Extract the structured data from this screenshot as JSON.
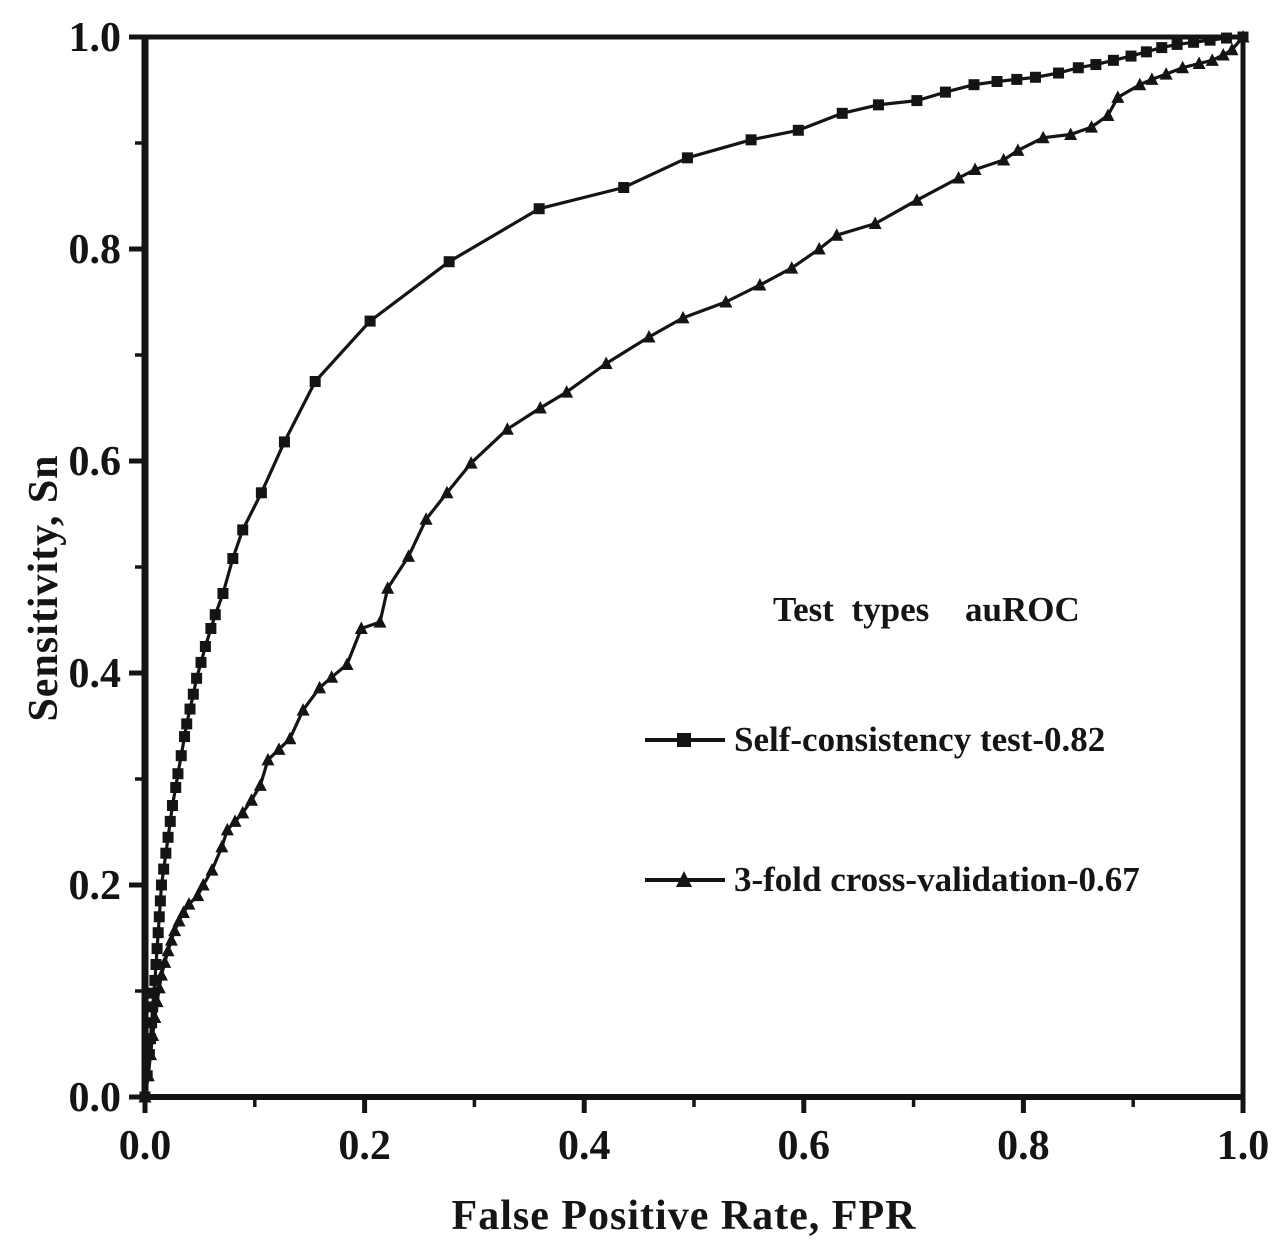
{
  "chart_data": {
    "type": "line",
    "title": "",
    "xlabel": "False Positive Rate, FPR",
    "ylabel": "Sensitivity, Sn",
    "xlim": [
      0.0,
      1.0
    ],
    "ylim": [
      0.0,
      1.0
    ],
    "grid": false,
    "x_ticks": {
      "values": [
        0.0,
        0.2,
        0.4,
        0.6,
        0.8,
        1.0
      ],
      "labels": [
        "0.0",
        "0.2",
        "0.4",
        "0.6",
        "0.8",
        "1.0"
      ],
      "minor_values": [
        0.1,
        0.3,
        0.5,
        0.7,
        0.9
      ]
    },
    "y_ticks": {
      "values": [
        0.0,
        0.2,
        0.4,
        0.6,
        0.8,
        1.0
      ],
      "labels": [
        "0.0",
        "0.2",
        "0.4",
        "0.6",
        "0.8",
        "1.0"
      ],
      "minor_values": [
        0.1,
        0.3,
        0.5,
        0.7,
        0.9
      ]
    },
    "colors": {
      "ink": "#141414",
      "background": "#ffffff"
    },
    "legend": {
      "position": "inside-right-middle",
      "header_col1": "Test  types",
      "header_col2": "auROC",
      "items": [
        {
          "label": "Self-consistency  test-0.82",
          "marker": "square",
          "auROC": 0.82
        },
        {
          "label": "3-fold cross-validation-0.67",
          "marker": "triangle-up",
          "auROC": 0.67
        }
      ]
    },
    "series": [
      {
        "name": "Self-consistency test",
        "auROC": 0.82,
        "marker": "square",
        "color": "#141414",
        "points": [
          [
            0.0,
            0.0
          ],
          [
            0.002,
            0.02
          ],
          [
            0.004,
            0.04
          ],
          [
            0.005,
            0.055
          ],
          [
            0.006,
            0.07
          ],
          [
            0.007,
            0.085
          ],
          [
            0.008,
            0.098
          ],
          [
            0.009,
            0.11
          ],
          [
            0.01,
            0.125
          ],
          [
            0.011,
            0.14
          ],
          [
            0.012,
            0.155
          ],
          [
            0.013,
            0.17
          ],
          [
            0.014,
            0.185
          ],
          [
            0.015,
            0.2
          ],
          [
            0.017,
            0.215
          ],
          [
            0.019,
            0.23
          ],
          [
            0.021,
            0.245
          ],
          [
            0.023,
            0.26
          ],
          [
            0.025,
            0.275
          ],
          [
            0.028,
            0.292
          ],
          [
            0.03,
            0.305
          ],
          [
            0.033,
            0.322
          ],
          [
            0.036,
            0.34
          ],
          [
            0.038,
            0.352
          ],
          [
            0.041,
            0.366
          ],
          [
            0.044,
            0.38
          ],
          [
            0.047,
            0.395
          ],
          [
            0.051,
            0.41
          ],
          [
            0.055,
            0.425
          ],
          [
            0.06,
            0.442
          ],
          [
            0.064,
            0.455
          ],
          [
            0.071,
            0.475
          ],
          [
            0.08,
            0.508
          ],
          [
            0.089,
            0.535
          ],
          [
            0.106,
            0.57
          ],
          [
            0.127,
            0.618
          ],
          [
            0.155,
            0.675
          ],
          [
            0.205,
            0.732
          ],
          [
            0.277,
            0.788
          ],
          [
            0.359,
            0.838
          ],
          [
            0.436,
            0.858
          ],
          [
            0.494,
            0.886
          ],
          [
            0.552,
            0.903
          ],
          [
            0.595,
            0.912
          ],
          [
            0.635,
            0.928
          ],
          [
            0.668,
            0.936
          ],
          [
            0.703,
            0.94
          ],
          [
            0.729,
            0.948
          ],
          [
            0.755,
            0.955
          ],
          [
            0.776,
            0.958
          ],
          [
            0.794,
            0.96
          ],
          [
            0.811,
            0.962
          ],
          [
            0.832,
            0.966
          ],
          [
            0.85,
            0.971
          ],
          [
            0.866,
            0.974
          ],
          [
            0.882,
            0.978
          ],
          [
            0.898,
            0.982
          ],
          [
            0.912,
            0.986
          ],
          [
            0.926,
            0.99
          ],
          [
            0.94,
            0.993
          ],
          [
            0.955,
            0.995
          ],
          [
            0.97,
            0.997
          ],
          [
            0.985,
            0.999
          ],
          [
            1.0,
            1.0
          ]
        ]
      },
      {
        "name": "3-fold cross-validation",
        "auROC": 0.67,
        "marker": "triangle-up",
        "color": "#141414",
        "points": [
          [
            0.0,
            0.0
          ],
          [
            0.003,
            0.02
          ],
          [
            0.005,
            0.04
          ],
          [
            0.007,
            0.058
          ],
          [
            0.009,
            0.075
          ],
          [
            0.011,
            0.09
          ],
          [
            0.013,
            0.103
          ],
          [
            0.015,
            0.115
          ],
          [
            0.018,
            0.127
          ],
          [
            0.021,
            0.138
          ],
          [
            0.024,
            0.148
          ],
          [
            0.027,
            0.157
          ],
          [
            0.031,
            0.166
          ],
          [
            0.035,
            0.174
          ],
          [
            0.04,
            0.182
          ],
          [
            0.048,
            0.19
          ],
          [
            0.053,
            0.2
          ],
          [
            0.061,
            0.214
          ],
          [
            0.07,
            0.236
          ],
          [
            0.075,
            0.252
          ],
          [
            0.082,
            0.26
          ],
          [
            0.089,
            0.268
          ],
          [
            0.097,
            0.28
          ],
          [
            0.105,
            0.294
          ],
          [
            0.112,
            0.318
          ],
          [
            0.122,
            0.328
          ],
          [
            0.132,
            0.338
          ],
          [
            0.144,
            0.365
          ],
          [
            0.159,
            0.386
          ],
          [
            0.17,
            0.396
          ],
          [
            0.184,
            0.408
          ],
          [
            0.197,
            0.442
          ],
          [
            0.214,
            0.448
          ],
          [
            0.221,
            0.48
          ],
          [
            0.24,
            0.51
          ],
          [
            0.256,
            0.545
          ],
          [
            0.275,
            0.57
          ],
          [
            0.297,
            0.598
          ],
          [
            0.33,
            0.63
          ],
          [
            0.36,
            0.65
          ],
          [
            0.384,
            0.665
          ],
          [
            0.42,
            0.692
          ],
          [
            0.459,
            0.717
          ],
          [
            0.49,
            0.735
          ],
          [
            0.529,
            0.75
          ],
          [
            0.56,
            0.766
          ],
          [
            0.589,
            0.782
          ],
          [
            0.614,
            0.8
          ],
          [
            0.63,
            0.813
          ],
          [
            0.665,
            0.824
          ],
          [
            0.703,
            0.846
          ],
          [
            0.741,
            0.867
          ],
          [
            0.756,
            0.875
          ],
          [
            0.782,
            0.884
          ],
          [
            0.795,
            0.893
          ],
          [
            0.818,
            0.905
          ],
          [
            0.843,
            0.908
          ],
          [
            0.862,
            0.915
          ],
          [
            0.877,
            0.926
          ],
          [
            0.886,
            0.943
          ],
          [
            0.906,
            0.955
          ],
          [
            0.917,
            0.96
          ],
          [
            0.93,
            0.965
          ],
          [
            0.945,
            0.971
          ],
          [
            0.96,
            0.975
          ],
          [
            0.972,
            0.978
          ],
          [
            0.982,
            0.983
          ],
          [
            0.99,
            0.988
          ],
          [
            1.0,
            1.0
          ]
        ]
      }
    ]
  }
}
